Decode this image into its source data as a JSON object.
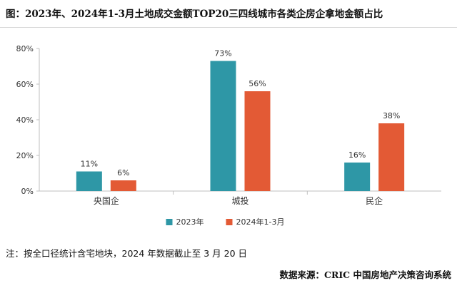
{
  "title": "图：2023年、2024年1-3月土地成交金额TOP20三四线城市各类企房企拿地金额占比",
  "note": "注：按全口径统计含宅地块，2024 年数据截止至 3 月 20 日",
  "source": "数据来源：CRIC 中国房地产决策咨询系统",
  "chart_data": {
    "type": "bar",
    "title": "图：2023年、2024年1-3月土地成交金额TOP20三四线城市各类企房企拿地金额占比",
    "xlabel": "",
    "ylabel": "",
    "categories": [
      "央国企",
      "城投",
      "民企"
    ],
    "series": [
      {
        "name": "2023年",
        "values": [
          11,
          73,
          16
        ],
        "labels": [
          "11%",
          "73%",
          "16%"
        ],
        "color": "#2e97a6"
      },
      {
        "name": "2024年1-3月",
        "values": [
          6,
          56,
          38
        ],
        "labels": [
          "6%",
          "56%",
          "38%"
        ],
        "color": "#e35a35"
      }
    ],
    "ylim": [
      0,
      80
    ],
    "yticks": [
      0,
      20,
      40,
      60,
      80
    ],
    "ytick_labels": [
      "0%",
      "20%",
      "40%",
      "60%",
      "80%"
    ],
    "grid": false,
    "legend_position": "bottom-center"
  }
}
